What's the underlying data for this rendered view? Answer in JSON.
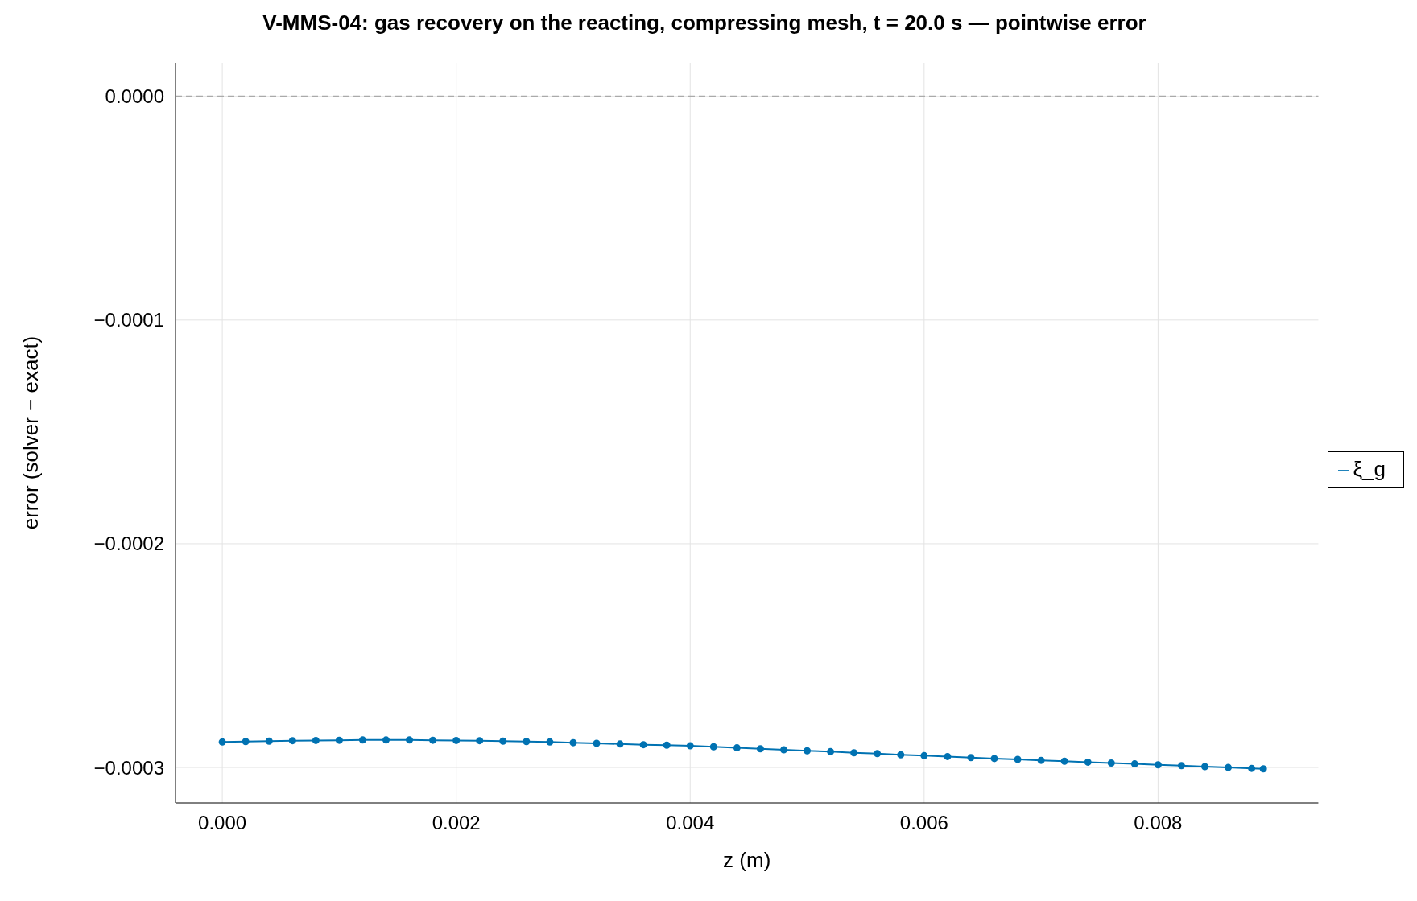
{
  "chart_data": {
    "type": "line",
    "title": "V-MMS-04: gas recovery on the reacting, compressing mesh, t = 20.0 s — pointwise error",
    "xlabel": "z (m)",
    "ylabel": "error (solver − exact)",
    "x": [
      0,
      0.0002,
      0.0004,
      0.0006,
      0.0008,
      0.001,
      0.0012,
      0.0014,
      0.0016,
      0.0018,
      0.002,
      0.0022,
      0.0024,
      0.0026,
      0.0028,
      0.003,
      0.0032,
      0.0034,
      0.0036,
      0.0038,
      0.004,
      0.0042,
      0.0044,
      0.0046,
      0.0048,
      0.005,
      0.0052,
      0.0054,
      0.0056,
      0.0058,
      0.006,
      0.0062,
      0.0064,
      0.0066,
      0.0068,
      0.007,
      0.0072,
      0.0074,
      0.0076,
      0.0078,
      0.008,
      0.0082,
      0.0084,
      0.0086,
      0.0088,
      0.0089
    ],
    "series": [
      {
        "name": "ξ_g",
        "color": "#0072b2",
        "values": [
          -0.0002886,
          -0.0002884,
          -0.0002882,
          -0.000288,
          -0.0002879,
          -0.0002878,
          -0.0002877,
          -0.0002877,
          -0.0002877,
          -0.0002878,
          -0.0002879,
          -0.000288,
          -0.0002882,
          -0.0002884,
          -0.0002886,
          -0.0002889,
          -0.0002892,
          -0.0002895,
          -0.0002898,
          -0.00029,
          -0.0002903,
          -0.0002907,
          -0.0002912,
          -0.0002916,
          -0.0002921,
          -0.0002925,
          -0.0002929,
          -0.0002934,
          -0.0002938,
          -0.0002943,
          -0.0002947,
          -0.0002951,
          -0.0002956,
          -0.000296,
          -0.0002964,
          -0.0002968,
          -0.0002972,
          -0.0002976,
          -0.000298,
          -0.0002984,
          -0.0002988,
          -0.0002992,
          -0.0002996,
          -0.0003,
          -0.0003004,
          -0.0003006
        ]
      }
    ],
    "xlim": [
      -0.0004,
      0.00937
    ],
    "ylim": [
      -0.0003158,
      1.5e-05
    ],
    "xticks": [
      {
        "value": 0,
        "label": "0.000"
      },
      {
        "value": 0.002,
        "label": "0.002"
      },
      {
        "value": 0.004,
        "label": "0.004"
      },
      {
        "value": 0.006,
        "label": "0.006"
      },
      {
        "value": 0.008,
        "label": "0.008"
      }
    ],
    "yticks": [
      {
        "value": 0,
        "label": "0.0000"
      },
      {
        "value": -0.0001,
        "label": "−0.0001"
      },
      {
        "value": -0.0002,
        "label": "−0.0002"
      },
      {
        "value": -0.0003,
        "label": "−0.0003"
      }
    ],
    "ref_lines": [
      {
        "axis": "y",
        "value": 0,
        "color": "#aaaaaa",
        "line_style": "dashed"
      }
    ],
    "grid": true,
    "legend": "right",
    "marker": "circle",
    "line_style": "solid"
  }
}
